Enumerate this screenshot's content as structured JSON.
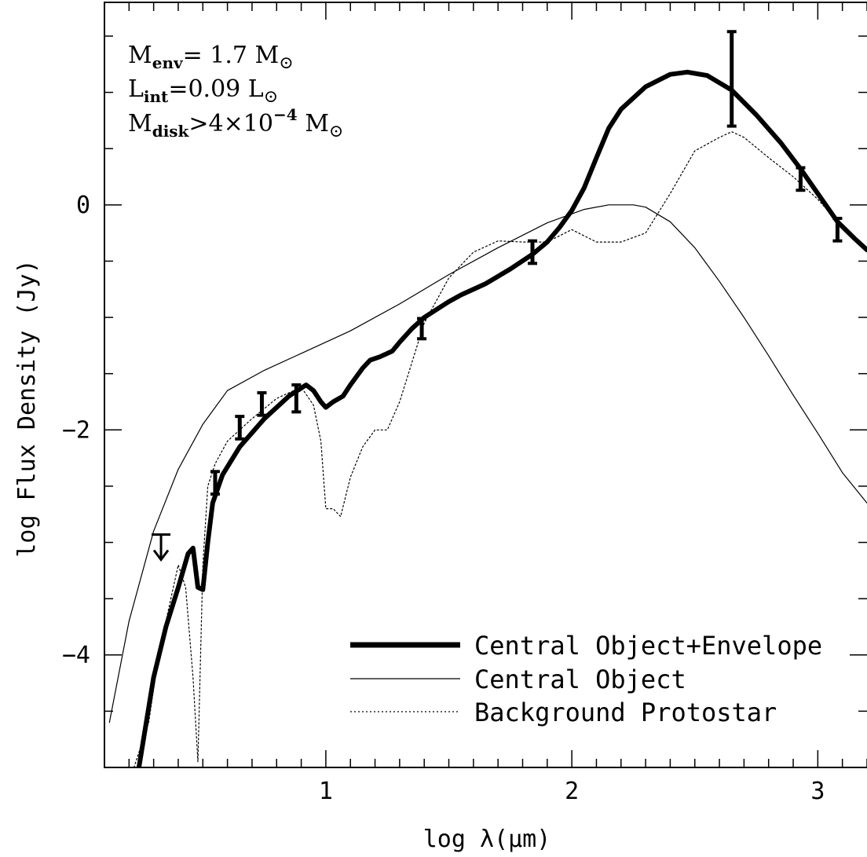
{
  "chart_data": {
    "type": "line",
    "xlabel": "log λ(μm)",
    "ylabel": "log Flux Density (Jy)",
    "xlim": [
      0.1,
      3.2
    ],
    "ylim": [
      -5.0,
      1.8
    ],
    "x_ticks": [
      1,
      2,
      3
    ],
    "x_tick_labels": [
      "1",
      "2",
      "3"
    ],
    "y_ticks": [
      0,
      -2,
      -4
    ],
    "y_tick_labels": [
      "0",
      "−2",
      "−4"
    ],
    "x_minor_step": 0.1,
    "y_minor_step": 0.5,
    "legend_position": "bottom-right",
    "annotations": {
      "m_env": {
        "lhs": "M",
        "sub": "env",
        "rest": "= 1.7 M",
        "sun": "⊙"
      },
      "l_int": {
        "lhs": "L",
        "sub": "int",
        "rest": "=0.09 L",
        "sun": "⊙"
      },
      "m_disk": {
        "lhs": "M",
        "sub": "disk",
        "rest": ">4×10",
        "exp": "−4",
        "tail": " M",
        "sun": "⊙"
      }
    },
    "series": [
      {
        "name": "Central Object+Envelope",
        "style": "thick",
        "x": [
          0.24,
          0.3,
          0.35,
          0.4,
          0.44,
          0.46,
          0.48,
          0.5,
          0.52,
          0.54,
          0.58,
          0.65,
          0.75,
          0.85,
          0.92,
          0.95,
          0.98,
          1.0,
          1.03,
          1.07,
          1.1,
          1.15,
          1.18,
          1.22,
          1.27,
          1.3,
          1.35,
          1.4,
          1.45,
          1.5,
          1.55,
          1.65,
          1.75,
          1.84,
          1.9,
          1.95,
          2.0,
          2.05,
          2.1,
          2.15,
          2.2,
          2.3,
          2.4,
          2.47,
          2.55,
          2.65,
          2.75,
          2.85,
          2.93,
          3.0,
          3.08,
          3.15,
          3.2
        ],
        "y": [
          -5.0,
          -4.2,
          -3.75,
          -3.4,
          -3.1,
          -3.05,
          -3.4,
          -3.42,
          -3.0,
          -2.65,
          -2.4,
          -2.15,
          -1.9,
          -1.7,
          -1.6,
          -1.65,
          -1.75,
          -1.8,
          -1.75,
          -1.7,
          -1.6,
          -1.45,
          -1.38,
          -1.35,
          -1.3,
          -1.22,
          -1.1,
          -1.0,
          -0.93,
          -0.86,
          -0.8,
          -0.7,
          -0.57,
          -0.44,
          -0.33,
          -0.2,
          -0.05,
          0.15,
          0.42,
          0.68,
          0.85,
          1.05,
          1.16,
          1.18,
          1.15,
          1.02,
          0.8,
          0.55,
          0.32,
          0.1,
          -0.15,
          -0.3,
          -0.4
        ]
      },
      {
        "name": "Central Object",
        "style": "thin",
        "x": [
          0.12,
          0.2,
          0.3,
          0.4,
          0.5,
          0.6,
          0.75,
          0.9,
          1.1,
          1.3,
          1.5,
          1.7,
          1.9,
          2.05,
          2.15,
          2.2,
          2.25,
          2.3,
          2.4,
          2.5,
          2.6,
          2.7,
          2.8,
          2.9,
          3.0,
          3.1,
          3.2
        ],
        "y": [
          -4.6,
          -3.7,
          -2.9,
          -2.35,
          -1.95,
          -1.65,
          -1.47,
          -1.32,
          -1.12,
          -0.88,
          -0.62,
          -0.38,
          -0.16,
          -0.04,
          0.0,
          0.0,
          0.0,
          -0.02,
          -0.15,
          -0.38,
          -0.68,
          -1.0,
          -1.34,
          -1.69,
          -2.03,
          -2.38,
          -2.65
        ]
      },
      {
        "name": "Background Protostar",
        "style": "dotted",
        "x": [
          0.22,
          0.28,
          0.32,
          0.36,
          0.4,
          0.43,
          0.46,
          0.48,
          0.5,
          0.52,
          0.55,
          0.6,
          0.7,
          0.8,
          0.9,
          0.95,
          0.98,
          1.0,
          1.03,
          1.06,
          1.1,
          1.15,
          1.2,
          1.25,
          1.3,
          1.4,
          1.5,
          1.6,
          1.7,
          1.8,
          1.9,
          2.0,
          2.1,
          2.2,
          2.3,
          2.4,
          2.5,
          2.6,
          2.65,
          2.7,
          2.8,
          2.9,
          3.0,
          3.1,
          3.2
        ],
        "y": [
          -5.0,
          -4.6,
          -4.0,
          -3.6,
          -3.2,
          -3.4,
          -4.2,
          -4.95,
          -3.2,
          -2.5,
          -2.3,
          -2.1,
          -1.9,
          -1.72,
          -1.62,
          -1.78,
          -2.1,
          -2.7,
          -2.7,
          -2.77,
          -2.42,
          -2.15,
          -2.0,
          -2.0,
          -1.75,
          -1.05,
          -0.65,
          -0.42,
          -0.32,
          -0.33,
          -0.33,
          -0.22,
          -0.33,
          -0.33,
          -0.25,
          0.1,
          0.48,
          0.6,
          0.65,
          0.6,
          0.42,
          0.25,
          0.05,
          -0.2,
          -0.4
        ]
      }
    ],
    "error_bars": [
      {
        "x": 0.55,
        "y": -2.47,
        "yerr": 0.1
      },
      {
        "x": 0.65,
        "y": -1.98,
        "yerr": 0.1
      },
      {
        "x": 0.74,
        "y": -1.77,
        "yerr": 0.1
      },
      {
        "x": 0.88,
        "y": -1.72,
        "yerr": 0.12
      },
      {
        "x": 1.39,
        "y": -1.1,
        "yerr": 0.09
      },
      {
        "x": 1.84,
        "y": -0.42,
        "yerr": 0.1
      },
      {
        "x": 2.65,
        "y": 1.12,
        "yerr": 0.42
      },
      {
        "x": 2.93,
        "y": 0.23,
        "yerr": 0.1
      },
      {
        "x": 3.08,
        "y": -0.22,
        "yerr": 0.1
      }
    ],
    "upper_limits": [
      {
        "x": 0.33,
        "y": -2.93
      }
    ]
  }
}
